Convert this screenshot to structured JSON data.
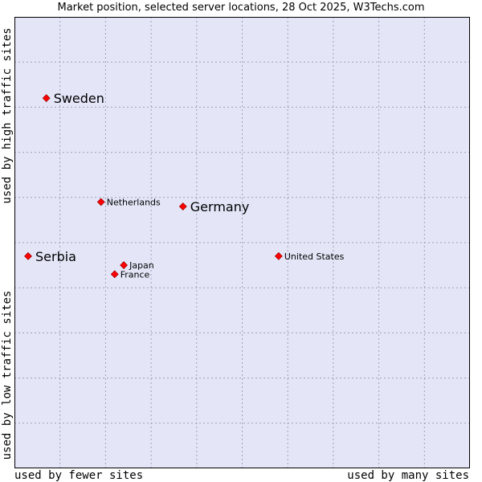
{
  "title": "Market position, selected server locations, 28 Oct 2025, W3Techs.com",
  "axes": {
    "x_left_label": "used by fewer sites",
    "x_right_label": "used by many sites",
    "y_top_label": "used by high traffic sites",
    "y_bottom_label": "used by low traffic sites"
  },
  "colors": {
    "plot_background": "#e4e6f8",
    "grid": "#a0a0b8",
    "border": "#000000",
    "marker": "#ff0000"
  },
  "chart_data": {
    "type": "scatter",
    "title": "Market position, selected server locations, 28 Oct 2025, W3Techs.com",
    "xlabel": "used by fewer sites → used by many sites",
    "ylabel": "used by low traffic sites → used by high traffic sites",
    "xlim": [
      0,
      100
    ],
    "ylim": [
      0,
      100
    ],
    "grid": true,
    "points": [
      {
        "label": "Sweden",
        "x": 7,
        "y": 82,
        "emphasis": true
      },
      {
        "label": "Netherlands",
        "x": 19,
        "y": 59,
        "emphasis": false
      },
      {
        "label": "Germany",
        "x": 37,
        "y": 58,
        "emphasis": true
      },
      {
        "label": "Serbia",
        "x": 3,
        "y": 47,
        "emphasis": true
      },
      {
        "label": "Japan",
        "x": 24,
        "y": 45,
        "emphasis": false
      },
      {
        "label": "France",
        "x": 22,
        "y": 43,
        "emphasis": false
      },
      {
        "label": "United States",
        "x": 58,
        "y": 47,
        "emphasis": false
      }
    ]
  }
}
